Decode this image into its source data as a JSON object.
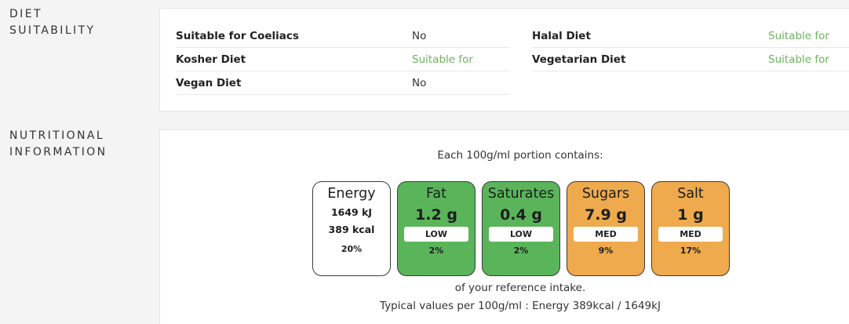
{
  "diet": {
    "section_title_line1": "DIET",
    "section_title_line2": "SUITABILITY",
    "rows": [
      {
        "name": "Suitable for Coeliacs",
        "value": "No",
        "suitable": false
      },
      {
        "name": "Kosher Diet",
        "value": "Suitable for",
        "suitable": true
      },
      {
        "name": "Vegan Diet",
        "value": "No",
        "suitable": false
      },
      {
        "name": "Halal Diet",
        "value": "Suitable for",
        "suitable": true
      },
      {
        "name": "Vegetarian Diet",
        "value": "Suitable for",
        "suitable": true
      }
    ],
    "colors": {
      "suitable": "#6bb35b",
      "default": "#333333"
    }
  },
  "nutrition": {
    "section_title_line1": "NUTRITIONAL",
    "section_title_line2": "INFORMATION",
    "portion_text": "Each 100g/ml portion contains:",
    "energy": {
      "label": "Energy",
      "kj": "1649 kJ",
      "kcal": "389 kcal",
      "percent": "20%"
    },
    "tiles": [
      {
        "label": "Fat",
        "amount": "1.2 g",
        "level": "LOW",
        "percent": "2%",
        "color": "#5ab55a"
      },
      {
        "label": "Saturates",
        "amount": "0.4 g",
        "level": "LOW",
        "percent": "2%",
        "color": "#5ab55a"
      },
      {
        "label": "Sugars",
        "amount": "7.9 g",
        "level": "MED",
        "percent": "9%",
        "color": "#eeaa4d"
      },
      {
        "label": "Salt",
        "amount": "1 g",
        "level": "MED",
        "percent": "17%",
        "color": "#eeaa4d"
      }
    ],
    "reference_text": "of your reference intake.",
    "typical_text": "Typical values per 100g/ml : Energy 389kcal / 1649kJ"
  }
}
